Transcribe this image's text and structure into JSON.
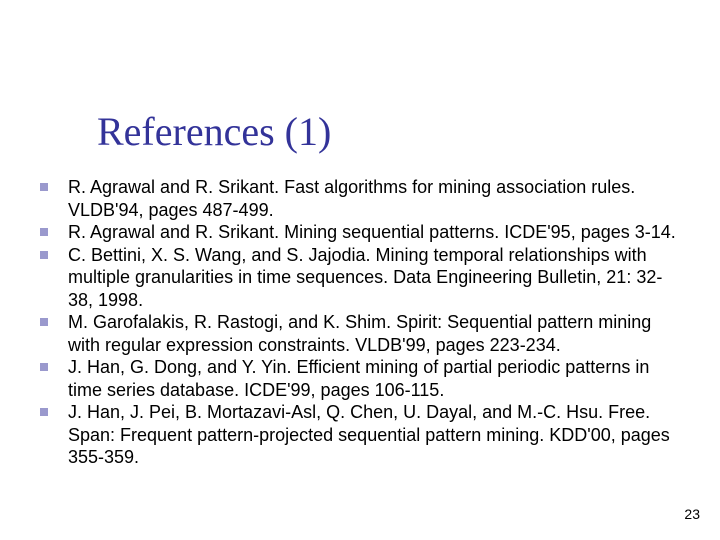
{
  "slide": {
    "title": "References (1)",
    "page_number": "23",
    "title_color": "#333399",
    "bullet_color": "#9a99cd",
    "background_color": "#ffffff",
    "text_color": "#000000",
    "title_fontsize": 40,
    "body_fontsize": 18,
    "references": [
      "R. Agrawal and R. Srikant. Fast algorithms for mining association rules. VLDB'94, pages 487-499.",
      "R. Agrawal and R. Srikant. Mining sequential patterns. ICDE'95, pages 3-14.",
      "C. Bettini, X. S. Wang, and S. Jajodia. Mining temporal relationships with multiple granularities in time sequences. Data Engineering Bulletin, 21: 32-38, 1998.",
      "M. Garofalakis, R. Rastogi, and K. Shim. Spirit: Sequential pattern mining with regular expression constraints. VLDB'99, pages 223-234.",
      "J. Han, G. Dong, and Y. Yin. Efficient mining of partial periodic patterns in time series database. ICDE'99, pages 106-115.",
      "J. Han, J. Pei, B. Mortazavi-Asl, Q. Chen, U. Dayal, and M.-C. Hsu. Free. Span: Frequent pattern-projected sequential pattern mining. KDD'00, pages 355-359."
    ]
  }
}
